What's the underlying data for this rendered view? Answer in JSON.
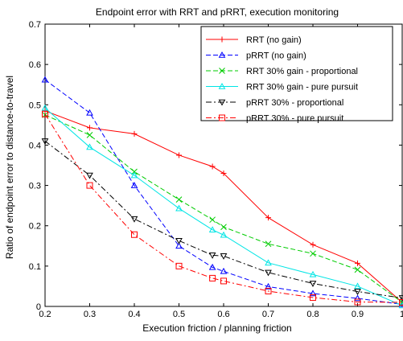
{
  "chart_data": {
    "type": "line",
    "title": "Endpoint error with RRT and pRRT, execution monitoring",
    "xlabel": "Execution friction / planning friction",
    "ylabel": "Ratio of endpoint error to distance-to-travel",
    "xlim": [
      0.2,
      1.0
    ],
    "ylim": [
      0,
      0.7
    ],
    "xticks": [
      "0.2",
      "0.3",
      "0.4",
      "0.5",
      "0.6",
      "0.7",
      "0.8",
      "0.9",
      "1"
    ],
    "yticks": [
      "0",
      "0.1",
      "0.2",
      "0.3",
      "0.4",
      "0.5",
      "0.6",
      "0.7"
    ],
    "grid": false,
    "legend_position": "top-right",
    "series": [
      {
        "name": "RRT (no gain)",
        "color": "#ff0000",
        "line_style": "solid",
        "marker": "plus",
        "x": [
          0.2,
          0.3,
          0.4,
          0.5,
          0.575,
          0.6,
          0.7,
          0.8,
          0.9,
          1.0
        ],
        "y": [
          0.485,
          0.443,
          0.428,
          0.375,
          0.347,
          0.33,
          0.22,
          0.153,
          0.107,
          0.01
        ]
      },
      {
        "name": "pRRT (no gain)",
        "color": "#0000ff",
        "line_style": "dashed",
        "marker": "triangle-up",
        "x": [
          0.2,
          0.3,
          0.4,
          0.5,
          0.575,
          0.6,
          0.7,
          0.8,
          0.9,
          1.0
        ],
        "y": [
          0.562,
          0.48,
          0.3,
          0.15,
          0.097,
          0.087,
          0.049,
          0.032,
          0.02,
          0.005
        ]
      },
      {
        "name": "RRT 30% gain - proportional",
        "color": "#00cc00",
        "line_style": "dashed",
        "marker": "x",
        "x": [
          0.2,
          0.3,
          0.4,
          0.5,
          0.575,
          0.6,
          0.7,
          0.8,
          0.9,
          1.0
        ],
        "y": [
          0.475,
          0.425,
          0.334,
          0.265,
          0.215,
          0.197,
          0.155,
          0.131,
          0.091,
          0.01
        ]
      },
      {
        "name": "RRT 30% gain - pure pursuit",
        "color": "#00e5e5",
        "line_style": "solid",
        "marker": "triangle-up",
        "x": [
          0.2,
          0.3,
          0.4,
          0.5,
          0.575,
          0.6,
          0.7,
          0.8,
          0.9,
          1.0
        ],
        "y": [
          0.492,
          0.395,
          0.325,
          0.243,
          0.19,
          0.177,
          0.108,
          0.079,
          0.05,
          0.002
        ]
      },
      {
        "name": "pRRT 30% - proportional",
        "color": "#000000",
        "line_style": "dashdot",
        "marker": "triangle-down",
        "x": [
          0.2,
          0.3,
          0.4,
          0.5,
          0.575,
          0.6,
          0.7,
          0.8,
          0.9,
          1.0
        ],
        "y": [
          0.41,
          0.325,
          0.217,
          0.163,
          0.127,
          0.125,
          0.084,
          0.057,
          0.037,
          0.021
        ]
      },
      {
        "name": "pRRT 30% - pure pursuit",
        "color": "#ff0000",
        "line_style": "dashdot",
        "marker": "square",
        "x": [
          0.2,
          0.3,
          0.4,
          0.5,
          0.575,
          0.6,
          0.7,
          0.8,
          0.9,
          1.0
        ],
        "y": [
          0.477,
          0.3,
          0.178,
          0.1,
          0.07,
          0.063,
          0.038,
          0.022,
          0.011,
          0.01
        ]
      }
    ]
  }
}
